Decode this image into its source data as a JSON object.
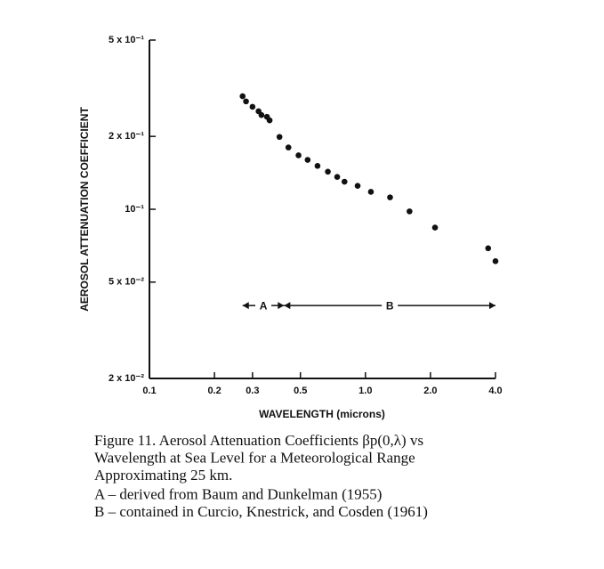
{
  "chart_data": {
    "type": "scatter",
    "x_label": "WAVELENGTH (microns)",
    "y_label": "AEROSOL ATTENUATION COEFFICIENT",
    "x_log": true,
    "y_log": true,
    "xlim": [
      0.1,
      4.0
    ],
    "ylim": [
      0.02,
      0.5
    ],
    "xticks": [
      0.1,
      0.2,
      0.3,
      0.5,
      {
        "value": 1,
        "label": "1.0"
      },
      {
        "value": 2,
        "label": "2.0"
      },
      {
        "value": 4,
        "label": "4.0"
      }
    ],
    "yticks": [
      {
        "value": 0.02,
        "label": "2 x 10⁻²"
      },
      {
        "value": 0.05,
        "label": "5 x 10⁻²"
      },
      {
        "value": 0.1,
        "label": "10⁻¹"
      },
      {
        "value": 0.2,
        "label": "2 x 10⁻¹"
      },
      {
        "value": 0.5,
        "label": "5 x 10⁻¹"
      }
    ],
    "color": "#111111",
    "x": [
      0.27,
      0.28,
      0.3,
      0.32,
      0.33,
      0.35,
      0.36,
      0.4,
      0.44,
      0.49,
      0.54,
      0.6,
      0.67,
      0.74,
      0.8,
      0.92,
      1.06,
      1.3,
      1.6,
      2.1,
      3.7,
      4.0
    ],
    "values": [
      0.293,
      0.279,
      0.265,
      0.254,
      0.245,
      0.241,
      0.233,
      0.199,
      0.18,
      0.167,
      0.16,
      0.151,
      0.143,
      0.136,
      0.13,
      0.125,
      0.118,
      0.112,
      0.098,
      0.084,
      0.069,
      0.061
    ],
    "ranges": [
      {
        "label": "A",
        "x": [
          0.27,
          0.42
        ],
        "y": 0.04
      },
      {
        "label": "B",
        "x": [
          0.42,
          4.0
        ],
        "y": 0.04
      }
    ]
  },
  "caption": [
    "Figure 11.  Aerosol Attenuation Coefficients βp(0,λ) vs",
    "Wavelength at Sea Level for a Meteorological Range",
    "Approximating 25 km.",
    "A – derived from Baum and Dunkelman (1955)",
    "B – contained in Curcio, Knestrick, and Cosden (1961)"
  ]
}
